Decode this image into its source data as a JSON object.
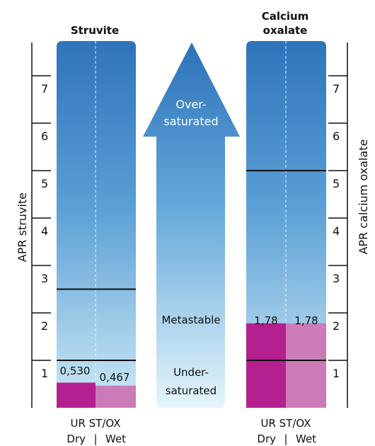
{
  "titles": {
    "struvite": "Struvite",
    "oxalate_line1": "Calcium",
    "oxalate_line2": "oxalate"
  },
  "axes": {
    "left_label": "APR struvite",
    "right_label": "APR calcium oxalate",
    "ticks": [
      "1",
      "2",
      "3",
      "4",
      "5",
      "6",
      "7"
    ]
  },
  "arrow": {
    "over_line1": "Over-",
    "over_line2": "saturated",
    "metastable": "Metastable",
    "under_line1": "Under-",
    "under_line2": "saturated"
  },
  "struvite": {
    "threshold_lower": 1,
    "threshold_upper": 2.5,
    "dry_value": "0,530",
    "wet_value": "0,467",
    "dry": 0.53,
    "wet": 0.467
  },
  "oxalate": {
    "threshold_lower": 1,
    "threshold_upper": 5,
    "dry_value": "1,78",
    "wet_value": "1,78",
    "dry": 1.78,
    "wet": 1.78
  },
  "footer": {
    "label": "UR ST/OX",
    "dry": "Dry",
    "sep": "|",
    "wet": "Wet"
  },
  "colors": {
    "top_blue": "#2f74bb",
    "light_blue": "#b9e0f1",
    "dry_magenta": "#b4208f",
    "wet_pink": "#cb7bb8",
    "separator": "#b4208f"
  }
}
